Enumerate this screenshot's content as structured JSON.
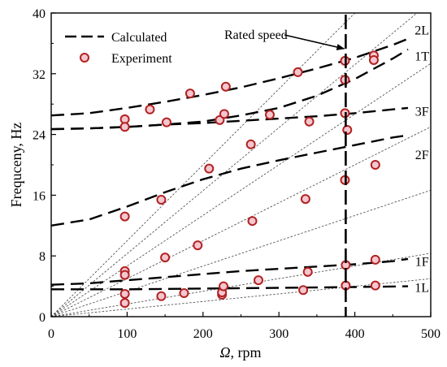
{
  "chart_data": {
    "type": "line",
    "title": "",
    "xlabel_symbol": "Ω",
    "xlabel_unit": ", rpm",
    "ylabel": "Frequceny, Hz",
    "xlim": [
      0,
      500
    ],
    "ylim": [
      0,
      40
    ],
    "xticks": [
      0,
      100,
      200,
      300,
      400,
      500
    ],
    "yticks": [
      0,
      8,
      16,
      24,
      32,
      40
    ],
    "grid": false,
    "legend": {
      "position": "top-left",
      "entries": [
        {
          "label": "Calculated",
          "style": "dashed-line"
        },
        {
          "label": "Experiment",
          "style": "circle-marker"
        }
      ]
    },
    "rated_speed": {
      "x": 388,
      "label": "Rated speed"
    },
    "colors": {
      "calculated": "#000000",
      "marker_edge": "#b22222",
      "marker_fill": "#f4c6cf",
      "reference": "#555555"
    },
    "series": [
      {
        "name": "2L",
        "kind": "calculated",
        "x": [
          0,
          50,
          100,
          150,
          200,
          250,
          300,
          350,
          400,
          450,
          470
        ],
        "y": [
          26.5,
          26.8,
          27.5,
          28.3,
          29.2,
          30.2,
          31.4,
          32.7,
          34.1,
          35.8,
          36.6
        ]
      },
      {
        "name": "1T",
        "kind": "calculated",
        "x": [
          0,
          50,
          100,
          150,
          200,
          250,
          300,
          350,
          400,
          450,
          470
        ],
        "y": [
          24.7,
          24.8,
          25.0,
          25.3,
          25.7,
          26.5,
          27.5,
          29.1,
          31.3,
          34.0,
          35.2
        ]
      },
      {
        "name": "3F",
        "kind": "calculated",
        "x": [
          0,
          50,
          100,
          150,
          200,
          250,
          300,
          350,
          400,
          450,
          470
        ],
        "y": [
          24.7,
          24.8,
          25.0,
          25.3,
          25.5,
          25.8,
          26.1,
          26.4,
          26.8,
          27.3,
          27.5
        ]
      },
      {
        "name": "2F",
        "kind": "calculated",
        "x": [
          0,
          50,
          100,
          150,
          200,
          250,
          300,
          350,
          400,
          450,
          470
        ],
        "y": [
          12.0,
          12.8,
          14.5,
          16.4,
          18.1,
          19.5,
          20.6,
          21.6,
          22.6,
          23.6,
          23.9
        ]
      },
      {
        "name": "1F",
        "kind": "calculated",
        "x": [
          0,
          50,
          100,
          150,
          200,
          250,
          300,
          350,
          400,
          450,
          470
        ],
        "y": [
          4.2,
          4.4,
          4.8,
          5.2,
          5.6,
          6.0,
          6.3,
          6.6,
          6.9,
          7.3,
          7.6
        ]
      },
      {
        "name": "1L",
        "kind": "calculated",
        "x": [
          0,
          100,
          200,
          300,
          400,
          470
        ],
        "y": [
          3.6,
          3.6,
          3.7,
          3.8,
          3.9,
          4.0
        ]
      }
    ],
    "experiment": {
      "x": [
        97,
        97,
        97,
        97,
        97,
        97,
        97,
        130,
        145,
        145,
        150,
        152,
        175,
        183,
        193,
        208,
        222,
        225,
        225,
        227,
        228,
        230,
        263,
        265,
        273,
        288,
        325,
        332,
        335,
        338,
        340,
        387,
        387,
        387,
        387,
        388,
        388,
        390,
        425,
        425,
        427,
        427,
        427
      ],
      "y": [
        26.0,
        25.0,
        13.2,
        6.0,
        5.5,
        3.0,
        1.8,
        27.3,
        15.4,
        2.7,
        7.8,
        25.6,
        3.1,
        29.4,
        9.4,
        19.5,
        25.9,
        2.9,
        3.2,
        4.0,
        26.7,
        30.3,
        22.7,
        12.6,
        4.8,
        26.6,
        32.2,
        3.5,
        15.5,
        5.9,
        25.7,
        33.7,
        31.2,
        26.8,
        18.0,
        4.1,
        6.8,
        24.6,
        34.4,
        33.8,
        20.0,
        7.5,
        4.1
      ]
    },
    "reference_lines": {
      "slopes": [
        0.1,
        0.083,
        0.0667,
        0.05,
        0.0333,
        0.0167,
        0.01
      ],
      "x_end": 500
    },
    "annotations": [
      {
        "text": "2L",
        "x": 467,
        "y": 37.7
      },
      {
        "text": "1T",
        "x": 467,
        "y": 34.3
      },
      {
        "text": "3F",
        "x": 467,
        "y": 27.0
      },
      {
        "text": "2F",
        "x": 467,
        "y": 21.3
      },
      {
        "text": "1F",
        "x": 467,
        "y": 7.2
      },
      {
        "text": "1L",
        "x": 467,
        "y": 3.8
      }
    ]
  }
}
